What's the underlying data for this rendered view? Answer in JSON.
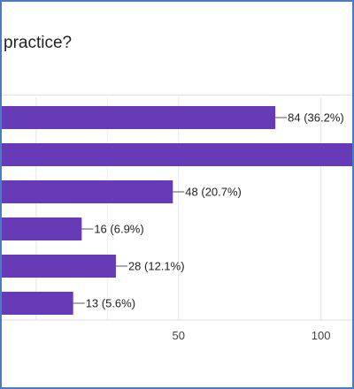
{
  "window": {
    "title_visible": "practice?"
  },
  "chart_data": {
    "type": "bar",
    "orientation": "horizontal",
    "title": "practice?",
    "categories": [
      "",
      "",
      "",
      "",
      "",
      ""
    ],
    "values": [
      84,
      113,
      48,
      16,
      28,
      13
    ],
    "data_labels": [
      "84 (36.2%)",
      "",
      "48 (20.7%)",
      "16 (6.9%)",
      "28 (12.1%)",
      "13 (5.6%)"
    ],
    "xticks": [
      50,
      100
    ],
    "xlim": [
      -12.7,
      111
    ],
    "grid": true,
    "bar_color": "#673ab7",
    "legend": "none"
  }
}
